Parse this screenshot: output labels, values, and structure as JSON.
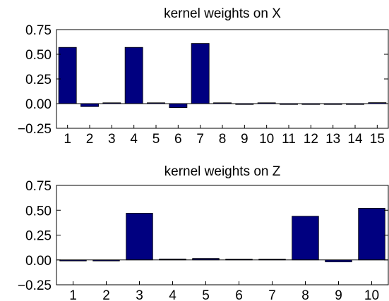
{
  "chart_data": [
    {
      "type": "bar",
      "title": "kernel weights on X",
      "xlabel": "",
      "ylabel": "",
      "categories": [
        "1",
        "2",
        "3",
        "4",
        "5",
        "6",
        "7",
        "8",
        "9",
        "10",
        "11",
        "12",
        "13",
        "14",
        "15"
      ],
      "values": [
        0.57,
        -0.03,
        0.005,
        0.57,
        0.0,
        -0.04,
        0.61,
        0.005,
        -0.005,
        0.005,
        -0.005,
        -0.005,
        -0.005,
        -0.005,
        0.01
      ],
      "ylim": [
        -0.25,
        0.75
      ],
      "yticks": [
        "0.75",
        "0.50",
        "0.25",
        "0.00",
        "−0.25"
      ],
      "ytick_values": [
        0.75,
        0.5,
        0.25,
        0.0,
        -0.25
      ],
      "grid": false,
      "bar_color": "#000080"
    },
    {
      "type": "bar",
      "title": "kernel weights on Z",
      "xlabel": "",
      "ylabel": "",
      "categories": [
        "1",
        "2",
        "3",
        "4",
        "5",
        "6",
        "7",
        "8",
        "9",
        "10"
      ],
      "values": [
        -0.01,
        -0.01,
        0.47,
        0.01,
        0.015,
        0.0,
        0.005,
        0.44,
        -0.02,
        0.52
      ],
      "ylim": [
        -0.25,
        0.75
      ],
      "yticks": [
        "0.75",
        "0.50",
        "0.25",
        "0.00",
        "−0.25"
      ],
      "ytick_values": [
        0.75,
        0.5,
        0.25,
        0.0,
        -0.25
      ],
      "grid": false,
      "bar_color": "#000080"
    }
  ]
}
